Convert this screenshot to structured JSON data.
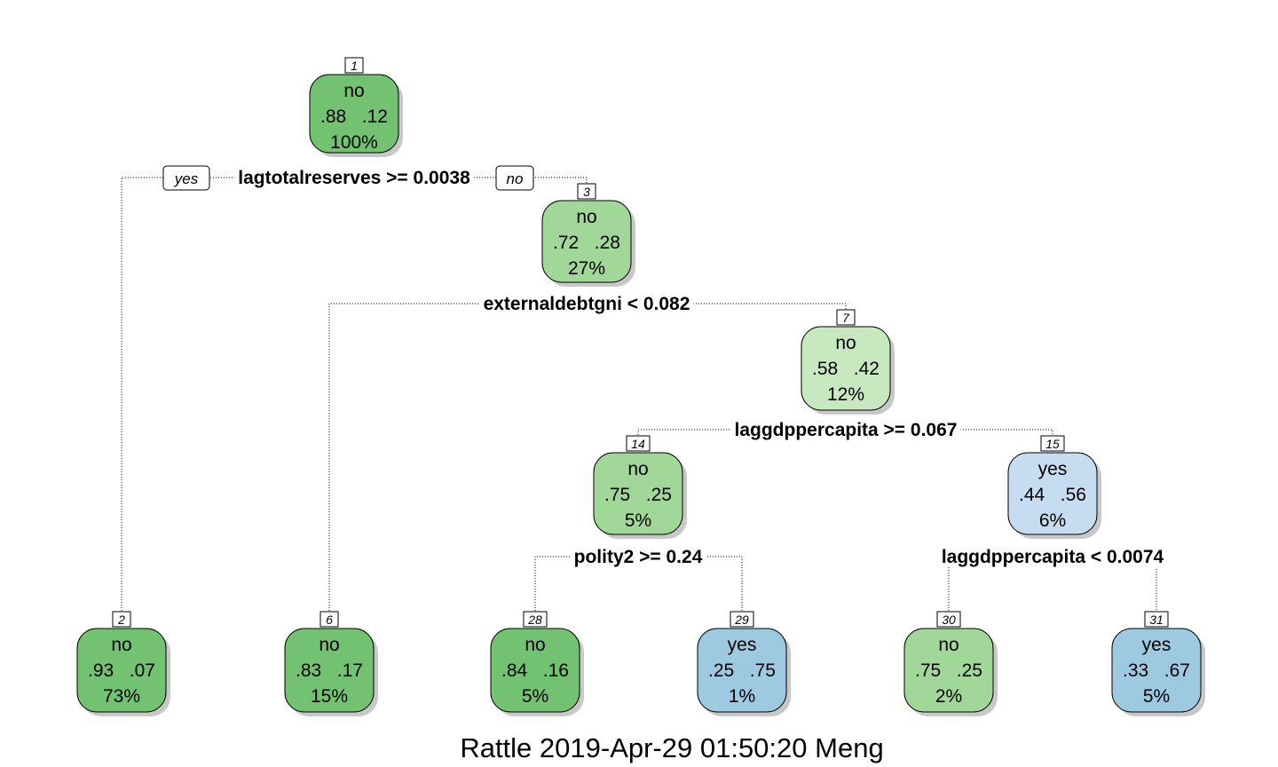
{
  "colors": {
    "no_dark": "#72c271",
    "no_medium": "#a1d899",
    "no_light": "#c8e9c0",
    "yes_light": "#c6dcf0",
    "yes_medium": "#9ecae1"
  },
  "branch_labels": {
    "yes": "yes",
    "no": "no"
  },
  "nodes": [
    {
      "id": "1",
      "cls": "no",
      "probs": ".88   .12",
      "pct": "100%"
    },
    {
      "id": "3",
      "cls": "no",
      "probs": ".72   .28",
      "pct": "27%"
    },
    {
      "id": "7",
      "cls": "no",
      "probs": ".58   .42",
      "pct": "12%"
    },
    {
      "id": "14",
      "cls": "no",
      "probs": ".75   .25",
      "pct": "5%"
    },
    {
      "id": "15",
      "cls": "yes",
      "probs": ".44   .56",
      "pct": "6%"
    },
    {
      "id": "2",
      "cls": "no",
      "probs": ".93   .07",
      "pct": "73%"
    },
    {
      "id": "6",
      "cls": "no",
      "probs": ".83   .17",
      "pct": "15%"
    },
    {
      "id": "28",
      "cls": "no",
      "probs": ".84   .16",
      "pct": "5%"
    },
    {
      "id": "29",
      "cls": "yes",
      "probs": ".25   .75",
      "pct": "1%"
    },
    {
      "id": "30",
      "cls": "no",
      "probs": ".75   .25",
      "pct": "2%"
    },
    {
      "id": "31",
      "cls": "yes",
      "probs": ".33   .67",
      "pct": "5%"
    }
  ],
  "splits": [
    {
      "node": "1",
      "rule": "lagtotalreserves >= 0.0038"
    },
    {
      "node": "3",
      "rule": "externaldebtgni < 0.082"
    },
    {
      "node": "7",
      "rule": "laggdppercapita >= 0.067"
    },
    {
      "node": "14",
      "rule": "polity2 >= 0.24"
    },
    {
      "node": "15",
      "rule": "laggdppercapita < 0.0074"
    }
  ],
  "footer": "Rattle 2019-Apr-29 01:50:20 Meng"
}
